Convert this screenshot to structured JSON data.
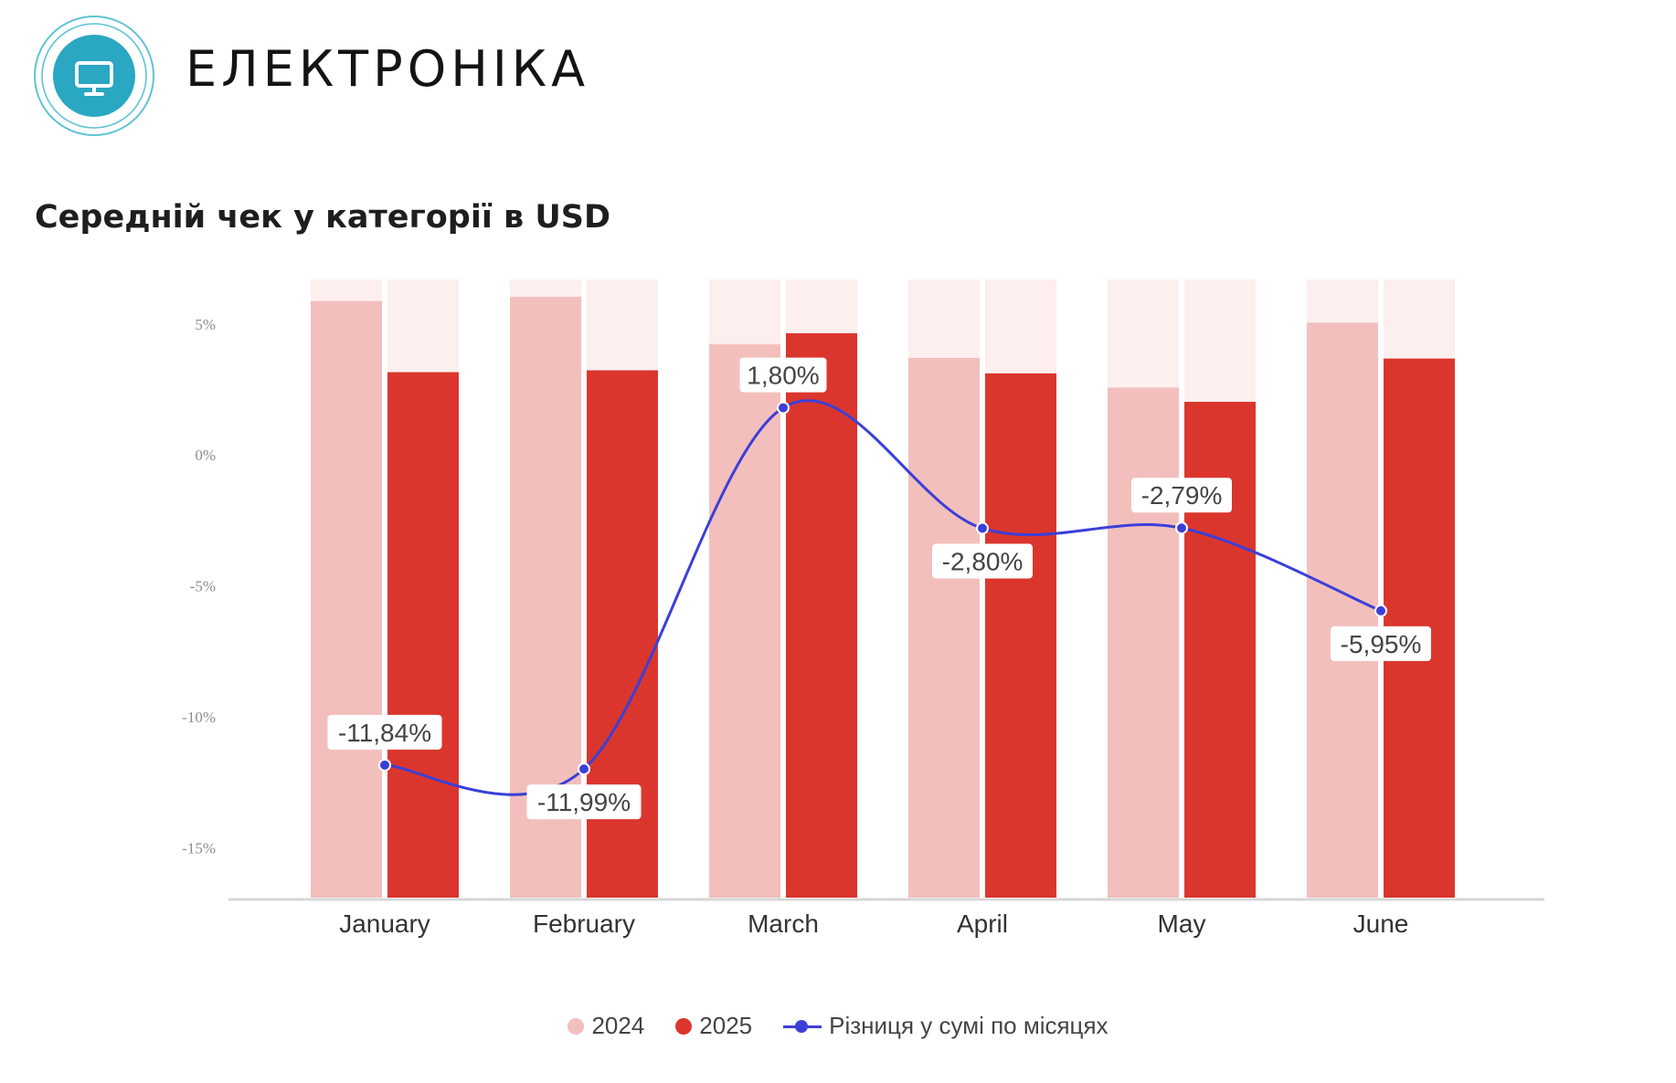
{
  "header": {
    "title": "ЕЛЕКТРОНІКА",
    "subtitle": "Середній чек у категорії в USD",
    "logo_icon": "monitor-icon"
  },
  "colors": {
    "bar_2024": "#f2bfbd",
    "bar_2025": "#db362d",
    "bar_bg": "#fcefee",
    "line": "#3b3fd8",
    "axis": "#d7d7d7",
    "tick_text": "#8c8c8c"
  },
  "chart_data": {
    "type": "bar",
    "categories": [
      "January",
      "February",
      "March",
      "April",
      "May",
      "June"
    ],
    "series": [
      {
        "name": "2024",
        "type": "bar",
        "values": [
          0.965,
          0.972,
          0.895,
          0.873,
          0.825,
          0.93
        ]
      },
      {
        "name": "2025",
        "type": "bar",
        "values": [
          0.85,
          0.853,
          0.913,
          0.848,
          0.802,
          0.872
        ]
      },
      {
        "name": "Різниця у сумі по місяцях",
        "type": "line",
        "values": [
          -11.84,
          -11.99,
          1.8,
          -2.8,
          -2.79,
          -5.95
        ],
        "labels": [
          "-11,84%",
          "-11,99%",
          "1,80%",
          "-2,80%",
          "-2,79%",
          "-5,95%"
        ]
      }
    ],
    "bar_values_note": "",
    "y_ticks": [
      "5%",
      "0%",
      "-5%",
      "-10%",
      "-15%"
    ],
    "y_tick_values": [
      5,
      0,
      -5,
      -10,
      -15
    ],
    "ylim": [
      -16.9,
      6.7
    ],
    "legend": [
      "2024",
      "2025",
      "Різниця у сумі по місяцях"
    ],
    "legend_position": "bottom",
    "grid": false
  }
}
